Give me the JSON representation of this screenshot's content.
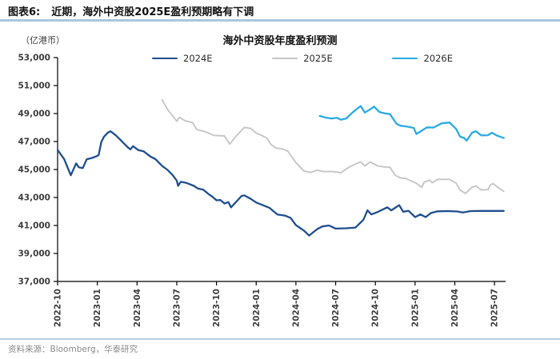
{
  "header": {
    "figure_label": "图表6:",
    "title": "近期，海外中资股2025E盈利预期略有下调"
  },
  "footer": {
    "source": "资料来源：Bloomberg，华泰研究"
  },
  "colors": {
    "navy": "#1f4e8f",
    "gray": "#c6c6c6",
    "cyan": "#29abe2",
    "axis": "#000000",
    "tick_text": "#3d3d3d",
    "rule_blue": "#a9c6e0"
  },
  "chart_data": {
    "type": "line",
    "title": "海外中资股年度盈利预测",
    "unit_label": "（亿港币）",
    "grid": false,
    "legend": {
      "position": "top",
      "entries": [
        "2024E",
        "2025E",
        "2026E"
      ]
    },
    "x_axis": {
      "tick_labels": [
        "2022-10",
        "2023-01",
        "2023-04",
        "2023-07",
        "2023-10",
        "2024-01",
        "2024-04",
        "2024-07",
        "2024-10",
        "2025-01",
        "2025-04",
        "2025-07"
      ],
      "tick_months": [
        0,
        3,
        6,
        9,
        12,
        15,
        18,
        21,
        24,
        27,
        30,
        33
      ]
    },
    "y_axis": {
      "min": 37000,
      "max": 53000,
      "step": 2000,
      "tick_labels": [
        "37,000",
        "39,000",
        "41,000",
        "43,000",
        "45,000",
        "47,000",
        "49,000",
        "51,000",
        "53,000"
      ]
    },
    "series": [
      {
        "name": "2024E",
        "color": "#1f4e8f",
        "line_width": 2.3,
        "points": [
          [
            0,
            46400
          ],
          [
            0.5,
            45730
          ],
          [
            1.0,
            44590
          ],
          [
            1.4,
            45440
          ],
          [
            1.6,
            45160
          ],
          [
            1.9,
            45100
          ],
          [
            2.2,
            45730
          ],
          [
            2.6,
            45830
          ],
          [
            2.9,
            45930
          ],
          [
            3.1,
            46030
          ],
          [
            3.3,
            46960
          ],
          [
            3.5,
            47340
          ],
          [
            3.8,
            47640
          ],
          [
            4.0,
            47730
          ],
          [
            4.4,
            47440
          ],
          [
            4.7,
            47160
          ],
          [
            5.0,
            46870
          ],
          [
            5.3,
            46590
          ],
          [
            5.5,
            46440
          ],
          [
            5.7,
            46670
          ],
          [
            6.1,
            46380
          ],
          [
            6.5,
            46300
          ],
          [
            7.0,
            45930
          ],
          [
            7.4,
            45730
          ],
          [
            7.9,
            45250
          ],
          [
            8.3,
            44970
          ],
          [
            8.7,
            44590
          ],
          [
            9.0,
            44200
          ],
          [
            9.1,
            43830
          ],
          [
            9.3,
            44120
          ],
          [
            9.7,
            44050
          ],
          [
            10.3,
            43830
          ],
          [
            10.6,
            43640
          ],
          [
            11.0,
            43560
          ],
          [
            11.4,
            43240
          ],
          [
            11.7,
            43050
          ],
          [
            12.0,
            42800
          ],
          [
            12.3,
            42820
          ],
          [
            12.6,
            42570
          ],
          [
            12.9,
            42670
          ],
          [
            13.1,
            42300
          ],
          [
            13.9,
            43110
          ],
          [
            14.1,
            43150
          ],
          [
            14.6,
            42900
          ],
          [
            15.0,
            42640
          ],
          [
            15.5,
            42450
          ],
          [
            16.0,
            42260
          ],
          [
            16.6,
            41790
          ],
          [
            17.2,
            41700
          ],
          [
            17.6,
            41540
          ],
          [
            18.0,
            41020
          ],
          [
            18.3,
            40830
          ],
          [
            18.6,
            40640
          ],
          [
            19.0,
            40280
          ],
          [
            19.6,
            40740
          ],
          [
            20.0,
            40930
          ],
          [
            20.5,
            41000
          ],
          [
            21.0,
            40780
          ],
          [
            21.8,
            40800
          ],
          [
            22.5,
            40850
          ],
          [
            23.1,
            41410
          ],
          [
            23.4,
            42080
          ],
          [
            23.7,
            41790
          ],
          [
            24.2,
            41980
          ],
          [
            24.6,
            42160
          ],
          [
            24.9,
            42300
          ],
          [
            25.2,
            42080
          ],
          [
            25.5,
            42260
          ],
          [
            25.8,
            42450
          ],
          [
            26.1,
            41980
          ],
          [
            26.5,
            42050
          ],
          [
            27.0,
            41600
          ],
          [
            27.4,
            41790
          ],
          [
            27.8,
            41600
          ],
          [
            28.2,
            41890
          ],
          [
            28.7,
            42010
          ],
          [
            29.5,
            42030
          ],
          [
            30.2,
            42000
          ],
          [
            30.6,
            41930
          ],
          [
            31.2,
            42030
          ],
          [
            32.0,
            42040
          ],
          [
            33.0,
            42040
          ],
          [
            33.7,
            42040
          ]
        ]
      },
      {
        "name": "2025E",
        "color": "#c6c6c6",
        "line_width": 1.9,
        "points": [
          [
            7.9,
            49970
          ],
          [
            8.3,
            49300
          ],
          [
            9.0,
            48450
          ],
          [
            9.2,
            48730
          ],
          [
            9.6,
            48500
          ],
          [
            10.2,
            48350
          ],
          [
            10.5,
            47870
          ],
          [
            11.2,
            47680
          ],
          [
            11.8,
            47440
          ],
          [
            12.2,
            47420
          ],
          [
            12.6,
            47400
          ],
          [
            13.0,
            46820
          ],
          [
            13.5,
            47400
          ],
          [
            14.1,
            48010
          ],
          [
            14.6,
            47930
          ],
          [
            15.0,
            47600
          ],
          [
            15.4,
            47440
          ],
          [
            15.8,
            47250
          ],
          [
            16.1,
            46800
          ],
          [
            16.5,
            46530
          ],
          [
            17.0,
            46470
          ],
          [
            17.4,
            46300
          ],
          [
            18.0,
            45500
          ],
          [
            18.6,
            44900
          ],
          [
            19.1,
            44790
          ],
          [
            19.6,
            44950
          ],
          [
            20.1,
            44850
          ],
          [
            20.8,
            44850
          ],
          [
            21.4,
            44770
          ],
          [
            22.0,
            45160
          ],
          [
            22.6,
            45440
          ],
          [
            22.9,
            45540
          ],
          [
            23.2,
            45250
          ],
          [
            23.6,
            45540
          ],
          [
            24.2,
            45250
          ],
          [
            24.7,
            45180
          ],
          [
            25.1,
            45160
          ],
          [
            25.5,
            44590
          ],
          [
            25.9,
            44400
          ],
          [
            26.3,
            44360
          ],
          [
            27.1,
            44020
          ],
          [
            27.5,
            43730
          ],
          [
            27.7,
            44110
          ],
          [
            28.1,
            44240
          ],
          [
            28.3,
            44050
          ],
          [
            28.7,
            44300
          ],
          [
            29.6,
            44300
          ],
          [
            30.1,
            44020
          ],
          [
            30.4,
            43540
          ],
          [
            30.8,
            43290
          ],
          [
            31.3,
            43730
          ],
          [
            31.6,
            43830
          ],
          [
            32.0,
            43540
          ],
          [
            32.5,
            43560
          ],
          [
            32.7,
            43920
          ],
          [
            32.9,
            43990
          ],
          [
            33.3,
            43700
          ],
          [
            33.7,
            43440
          ]
        ]
      },
      {
        "name": "2026E",
        "color": "#29abe2",
        "line_width": 2.3,
        "points": [
          [
            19.8,
            48830
          ],
          [
            20.3,
            48700
          ],
          [
            20.7,
            48640
          ],
          [
            21.1,
            48700
          ],
          [
            21.4,
            48560
          ],
          [
            21.8,
            48650
          ],
          [
            22.3,
            49100
          ],
          [
            22.7,
            49400
          ],
          [
            22.9,
            49530
          ],
          [
            23.2,
            49070
          ],
          [
            23.6,
            49300
          ],
          [
            23.9,
            49500
          ],
          [
            24.3,
            49110
          ],
          [
            24.8,
            49000
          ],
          [
            25.1,
            48960
          ],
          [
            25.6,
            48260
          ],
          [
            25.9,
            48130
          ],
          [
            26.5,
            48050
          ],
          [
            26.9,
            47970
          ],
          [
            27.1,
            47540
          ],
          [
            27.9,
            48010
          ],
          [
            28.4,
            48000
          ],
          [
            29.0,
            48300
          ],
          [
            29.6,
            48360
          ],
          [
            30.1,
            47900
          ],
          [
            30.4,
            47350
          ],
          [
            30.7,
            47250
          ],
          [
            30.9,
            47060
          ],
          [
            31.3,
            47630
          ],
          [
            31.6,
            47730
          ],
          [
            32.0,
            47440
          ],
          [
            32.5,
            47450
          ],
          [
            32.8,
            47630
          ],
          [
            33.2,
            47420
          ],
          [
            33.7,
            47250
          ]
        ]
      }
    ]
  }
}
